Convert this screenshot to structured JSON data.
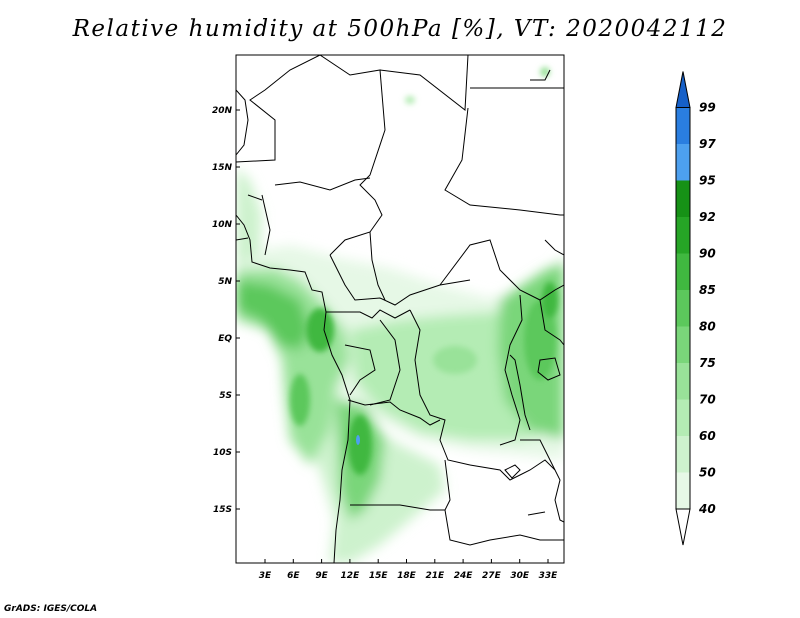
{
  "title": "Relative humidity at 500hPa [%], VT: 2020042112",
  "credit": "GrADS: IGES/COLA",
  "map": {
    "lat_labels": [
      "20N",
      "15N",
      "10N",
      "5N",
      "EQ",
      "5S",
      "10S",
      "15S"
    ],
    "lon_labels": [
      "3E",
      "6E",
      "9E",
      "12E",
      "15E",
      "18E",
      "21E",
      "24E",
      "27E",
      "30E",
      "33E"
    ]
  },
  "colorbar": {
    "levels": [
      "40",
      "50",
      "60",
      "70",
      "75",
      "80",
      "85",
      "90",
      "92",
      "95",
      "97",
      "99"
    ],
    "colors": [
      "#ffffff",
      "#e6f8e6",
      "#cdf2cd",
      "#b4ecb4",
      "#99e299",
      "#7ad67a",
      "#5cc85c",
      "#40b840",
      "#26a526",
      "#169116",
      "#4da0ef",
      "#2a7ee0",
      "#1660c8"
    ]
  }
}
